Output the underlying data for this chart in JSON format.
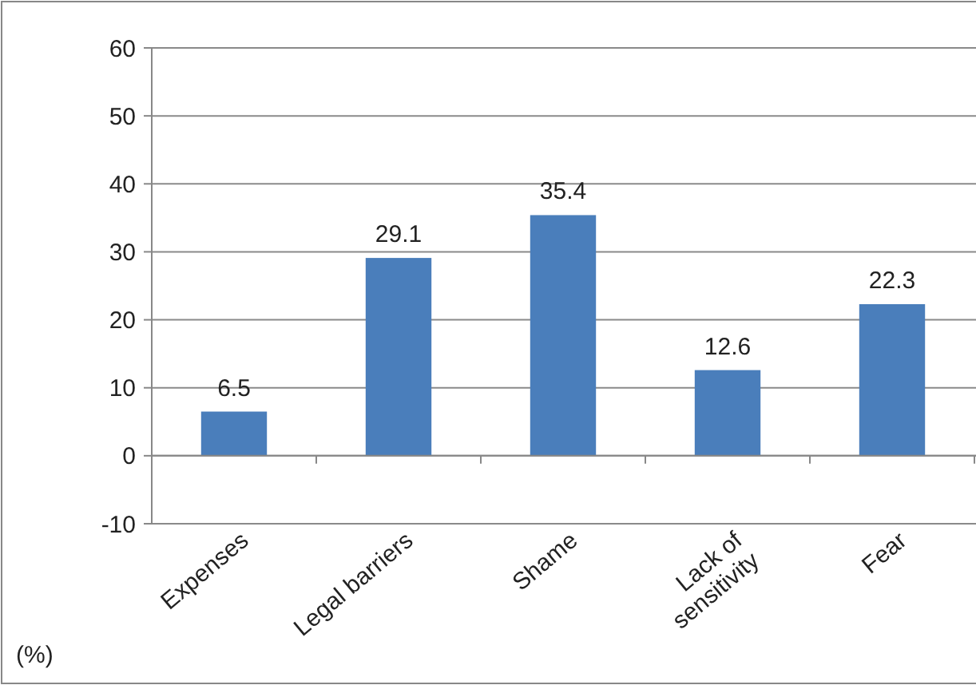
{
  "chart_data": {
    "type": "bar",
    "ylabel": "(%)",
    "categories": [
      "Expenses",
      "Legal barriers",
      "Shame",
      "Lack of sensitivity",
      "Fear"
    ],
    "values": [
      6.5,
      29.1,
      35.4,
      12.6,
      22.3
    ],
    "color": "#4a7ebb",
    "ylim": [
      -10,
      60
    ],
    "yticks": [
      -10,
      0,
      10,
      20,
      30,
      40,
      50,
      60
    ],
    "grid": "y",
    "data_labels": true
  }
}
